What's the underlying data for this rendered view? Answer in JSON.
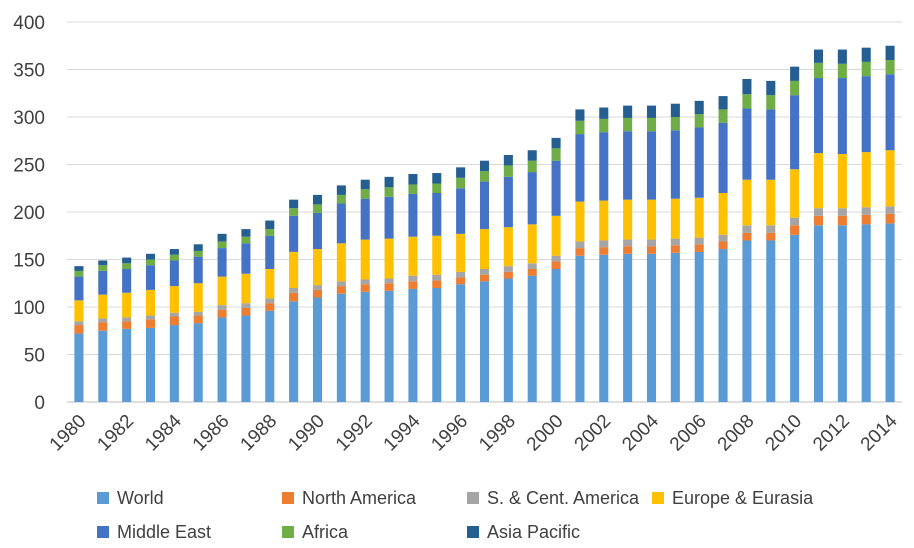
{
  "chart_data": {
    "type": "bar",
    "stacked": true,
    "title": "",
    "xlabel": "",
    "ylabel": "",
    "ylim": [
      0,
      400
    ],
    "yticks": [
      0,
      50,
      100,
      150,
      200,
      250,
      300,
      350,
      400
    ],
    "grid": true,
    "legend_position": "bottom",
    "categories": [
      1980,
      1981,
      1982,
      1983,
      1984,
      1985,
      1986,
      1987,
      1988,
      1989,
      1990,
      1991,
      1992,
      1993,
      1994,
      1995,
      1996,
      1997,
      1998,
      1999,
      2000,
      2001,
      2002,
      2003,
      2004,
      2005,
      2006,
      2007,
      2008,
      2009,
      2010,
      2011,
      2012,
      2013,
      2014
    ],
    "x_tick_labels": [
      "1980",
      "1982",
      "1984",
      "1986",
      "1988",
      "1990",
      "1992",
      "1994",
      "1996",
      "1998",
      "2000",
      "2002",
      "2004",
      "2006",
      "2008",
      "2010",
      "2012",
      "2014"
    ],
    "series": [
      {
        "name": "World",
        "color": "#5B9BD5",
        "values": [
          72,
          75,
          77,
          78,
          81,
          83,
          89,
          91,
          96,
          106,
          110,
          114,
          116,
          117,
          119,
          120,
          124,
          127,
          130,
          133,
          140,
          154,
          155,
          156,
          156,
          157,
          158,
          161,
          170,
          170,
          176,
          186,
          186,
          187,
          188
        ]
      },
      {
        "name": "North America",
        "color": "#ED7D31",
        "values": [
          9,
          9,
          8,
          9,
          9,
          8,
          8,
          8,
          8,
          9,
          8,
          8,
          8,
          8,
          8,
          8,
          7,
          7,
          7,
          7,
          8,
          8,
          8,
          8,
          8,
          8,
          8,
          8,
          8,
          8,
          10,
          10,
          10,
          10,
          10
        ]
      },
      {
        "name": "S. & Cent. America",
        "color": "#A5A5A5",
        "values": [
          4,
          4,
          4,
          4,
          4,
          4,
          5,
          5,
          5,
          5,
          5,
          5,
          5,
          5,
          6,
          6,
          6,
          6,
          6,
          6,
          6,
          7,
          7,
          7,
          7,
          7,
          7,
          7,
          8,
          8,
          8,
          8,
          8,
          8,
          8
        ]
      },
      {
        "name": "Europe & Eurasia",
        "color": "#FFC000",
        "values": [
          22,
          25,
          26,
          27,
          28,
          30,
          30,
          31,
          31,
          38,
          38,
          40,
          42,
          42,
          41,
          41,
          40,
          42,
          41,
          41,
          42,
          42,
          42,
          42,
          42,
          42,
          42,
          44,
          48,
          48,
          51,
          58,
          57,
          58,
          59
        ]
      },
      {
        "name": "Middle East",
        "color": "#4472C4",
        "values": [
          25,
          25,
          25,
          26,
          27,
          28,
          30,
          32,
          35,
          38,
          38,
          42,
          43,
          44,
          45,
          45,
          48,
          50,
          53,
          55,
          58,
          71,
          72,
          72,
          72,
          72,
          74,
          74,
          75,
          74,
          78,
          79,
          80,
          80,
          80
        ]
      },
      {
        "name": "Africa",
        "color": "#70AD47",
        "values": [
          6,
          6,
          6,
          6,
          6,
          6,
          7,
          7,
          7,
          8,
          9,
          9,
          10,
          10,
          10,
          10,
          11,
          11,
          12,
          12,
          13,
          14,
          14,
          14,
          14,
          14,
          14,
          14,
          15,
          15,
          15,
          16,
          15,
          15,
          15
        ]
      },
      {
        "name": "Asia Pacific",
        "color": "#255E91",
        "values": [
          5,
          5,
          6,
          6,
          6,
          7,
          8,
          8,
          9,
          9,
          10,
          10,
          10,
          11,
          11,
          11,
          11,
          11,
          11,
          11,
          11,
          12,
          12,
          13,
          13,
          14,
          14,
          14,
          16,
          15,
          15,
          14,
          15,
          15,
          15
        ]
      }
    ]
  }
}
